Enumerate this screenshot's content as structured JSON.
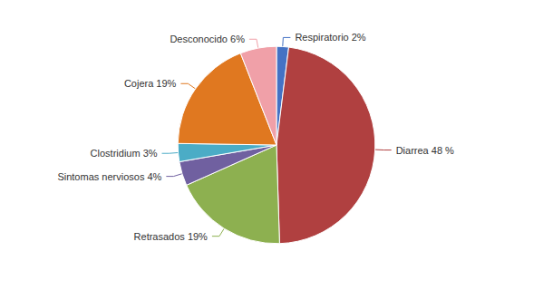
{
  "chart_data": {
    "type": "pie",
    "categories": [
      "Respiratorio 2%",
      "Diarrea 48 %",
      "Retrasados 19%",
      "Sintomas nerviosos 4%",
      "Clostridium 3%",
      "Cojera 19%",
      "Desconocido 6%"
    ],
    "values": [
      2,
      48,
      19,
      4,
      3,
      19,
      6
    ],
    "colors": [
      "#4472C4",
      "#B04040",
      "#8DB050",
      "#7060A0",
      "#4BACC6",
      "#E07820",
      "#F0A0A8"
    ]
  }
}
